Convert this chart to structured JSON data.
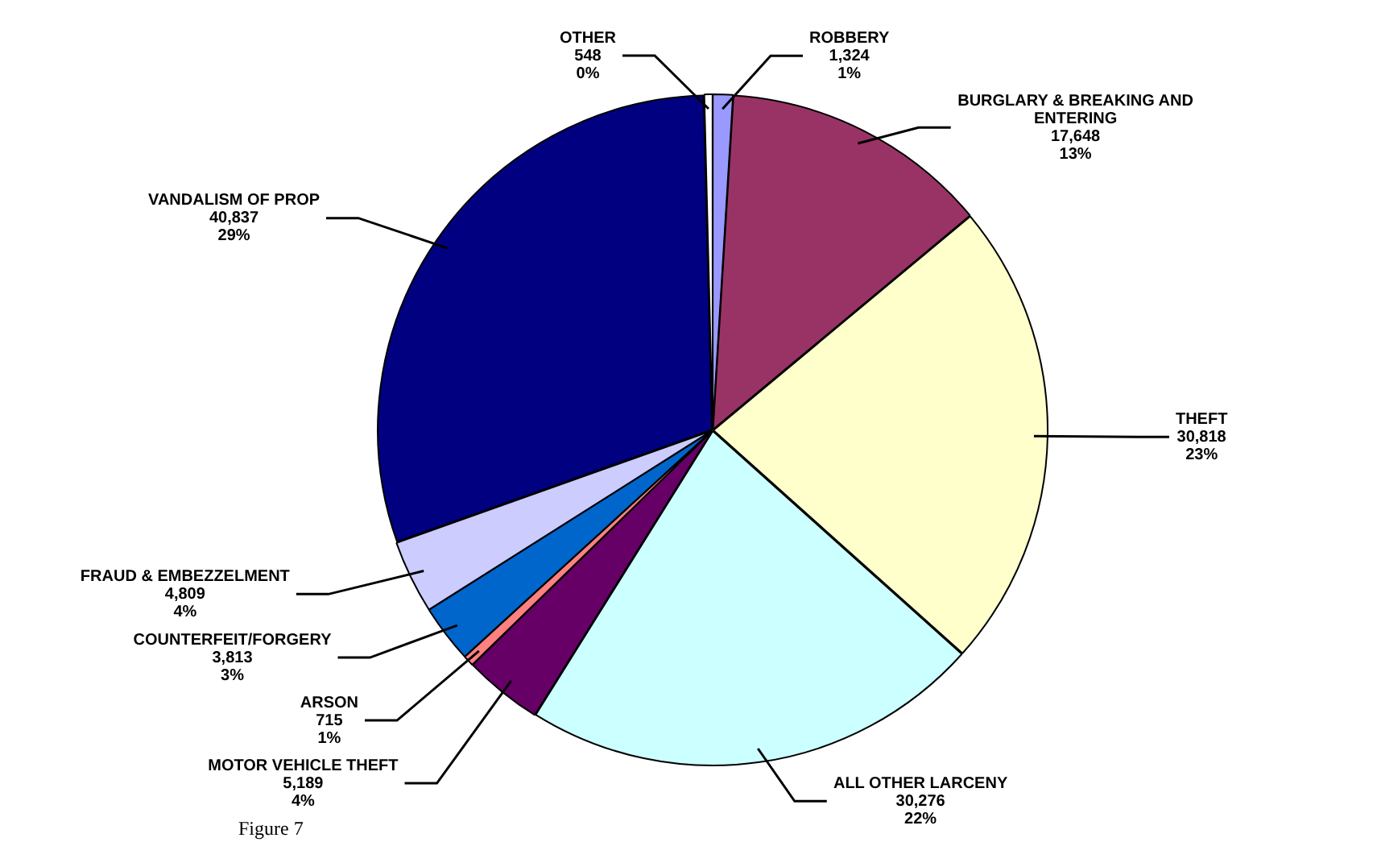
{
  "chart_data": {
    "type": "pie",
    "categories": [
      "ROBBERY",
      "BURGLARY & BREAKING AND ENTERING",
      "THEFT",
      "ALL OTHER LARCENY",
      "MOTOR VEHICLE THEFT",
      "ARSON",
      "COUNTERFEIT/FORGERY",
      "FRAUD & EMBEZZELMENT",
      "VANDALISM OF PROP",
      "OTHER"
    ],
    "values": [
      1324,
      17648,
      30818,
      30276,
      5189,
      715,
      3813,
      4809,
      40837,
      548
    ],
    "value_labels": [
      "1,324\n1%",
      "17,648\n13%",
      "30,818\n23%",
      "30,276\n22%",
      "5,189\n4%",
      "715\n1%",
      "3,813\n3%",
      "4,809\n4%",
      "40,837\n29%",
      "548\n0%"
    ],
    "colors": [
      "#9999ff",
      "#993366",
      "#ffffcc",
      "#ccffff",
      "#660066",
      "#ff8080",
      "#0066cc",
      "#ccccff",
      "#000080",
      "#ffffff"
    ],
    "legend": false,
    "annotations": [
      "Figure 7"
    ]
  }
}
